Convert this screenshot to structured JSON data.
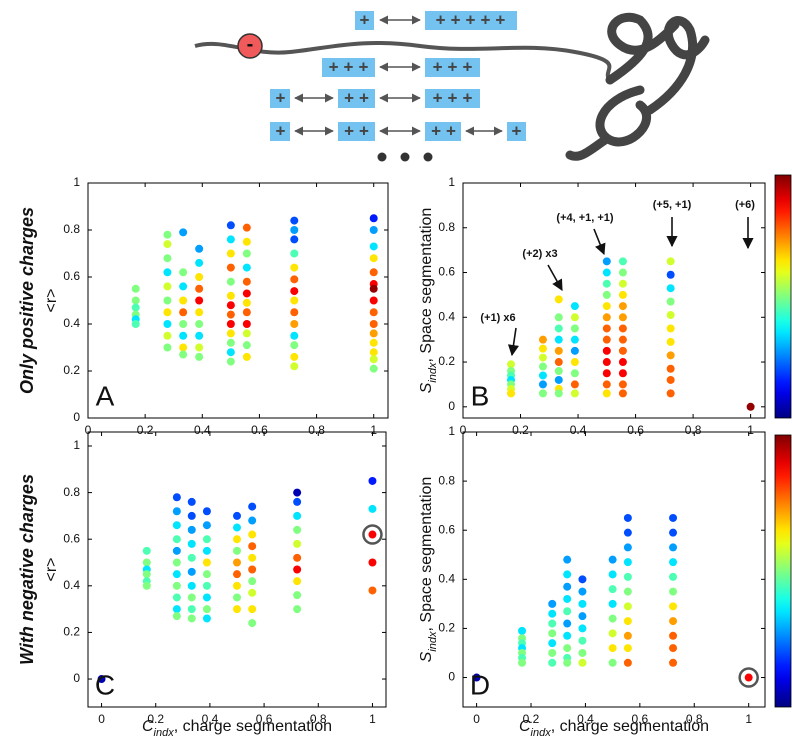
{
  "diagram": {
    "minus": "-",
    "rows": [
      [
        "+",
        "+++++"
      ],
      [
        "+++",
        "+++"
      ],
      [
        "+",
        "++",
        "+++"
      ],
      [
        "+",
        "++",
        "++",
        "+"
      ]
    ]
  },
  "chart_data": [
    {
      "type": "scatter",
      "panel_label": "A",
      "row_label": "Only positive charges",
      "ylabel": "<r>",
      "xlim": [
        0,
        1.05
      ],
      "ylim": [
        0,
        1
      ],
      "xticks": [
        0,
        0.2,
        0.4,
        0.6,
        0.8,
        1
      ],
      "yticks": [
        0,
        0.2,
        0.4,
        0.6,
        0.8,
        1
      ],
      "colormap": "jet",
      "clim": [
        0,
        1
      ],
      "series": [
        {
          "x": 0.167,
          "values": [
            0.55,
            0.5,
            0.47,
            0.44,
            0.42,
            0.4
          ],
          "colors": [
            0.5,
            0.5,
            0.45,
            0.5,
            0.35,
            0.45
          ]
        },
        {
          "x": 0.278,
          "values": [
            0.78,
            0.74,
            0.68,
            0.62,
            0.56,
            0.5,
            0.45,
            0.4,
            0.35,
            0.3
          ],
          "colors": [
            0.5,
            0.58,
            0.5,
            0.35,
            0.58,
            0.5,
            0.65,
            0.35,
            0.58,
            0.5
          ]
        },
        {
          "x": 0.333,
          "values": [
            0.79,
            0.62,
            0.56,
            0.5,
            0.45,
            0.4,
            0.35,
            0.3,
            0.27
          ],
          "colors": [
            0.28,
            0.5,
            0.35,
            0.65,
            0.78,
            0.5,
            0.35,
            0.65,
            0.5
          ]
        },
        {
          "x": 0.389,
          "values": [
            0.72,
            0.66,
            0.6,
            0.55,
            0.5,
            0.45,
            0.4,
            0.35,
            0.3,
            0.26
          ],
          "colors": [
            0.28,
            0.35,
            0.65,
            0.78,
            0.88,
            0.65,
            0.5,
            0.35,
            0.58,
            0.5
          ]
        },
        {
          "x": 0.5,
          "values": [
            0.82,
            0.76,
            0.7,
            0.64,
            0.58,
            0.52,
            0.48,
            0.44,
            0.4,
            0.36,
            0.32,
            0.28,
            0.24
          ],
          "colors": [
            0.2,
            0.35,
            0.65,
            0.78,
            0.5,
            0.65,
            0.88,
            0.78,
            0.88,
            0.65,
            0.5,
            0.35,
            0.5
          ]
        },
        {
          "x": 0.556,
          "values": [
            0.81,
            0.75,
            0.7,
            0.64,
            0.58,
            0.53,
            0.49,
            0.45,
            0.4,
            0.36,
            0.31,
            0.26
          ],
          "colors": [
            0.78,
            0.65,
            0.5,
            0.35,
            0.78,
            0.88,
            0.65,
            0.78,
            0.88,
            0.58,
            0.5,
            0.65
          ]
        },
        {
          "x": 0.722,
          "values": [
            0.84,
            0.8,
            0.76,
            0.7,
            0.64,
            0.59,
            0.54,
            0.5,
            0.45,
            0.4,
            0.35,
            0.31,
            0.26,
            0.22
          ],
          "colors": [
            0.2,
            0.28,
            0.2,
            0.45,
            0.65,
            0.78,
            0.88,
            0.65,
            0.78,
            0.72,
            0.35,
            0.5,
            0.65,
            0.58
          ]
        },
        {
          "x": 1,
          "values": [
            0.85,
            0.8,
            0.73,
            0.68,
            0.62,
            0.57,
            0.55,
            0.5,
            0.45,
            0.4,
            0.36,
            0.32,
            0.28,
            0.25,
            0.21
          ],
          "colors": [
            0.15,
            0.28,
            0.35,
            0.65,
            0.78,
            0.88,
            0.98,
            0.88,
            0.78,
            0.78,
            0.72,
            0.65,
            0.65,
            0.58,
            0.5
          ]
        }
      ]
    },
    {
      "type": "scatter",
      "panel_label": "B",
      "ylabel": {
        "symbol": "S",
        "subscript": "indx",
        "text": ", Space segmentation"
      },
      "xlim": [
        0,
        1.05
      ],
      "ylim": [
        -0.05,
        1
      ],
      "xticks": [
        0,
        0.2,
        0.4,
        0.6,
        0.8,
        1
      ],
      "yticks": [
        0,
        0.2,
        0.4,
        0.6,
        0.8,
        1
      ],
      "colormap": "jet",
      "clim": [
        0,
        1
      ],
      "colorbar": true,
      "annotations": [
        "(+1) x6",
        "(+2) x3",
        "(+4, +1, +1)",
        "(+5, +1)",
        "(+6)"
      ],
      "series": [
        {
          "x": 0.167,
          "values": [
            0.19,
            0.16,
            0.14,
            0.12,
            0.1,
            0.08,
            0.06
          ],
          "colors": [
            0.58,
            0.5,
            0.45,
            0.35,
            0.5,
            0.58,
            0.65
          ]
        },
        {
          "x": 0.278,
          "values": [
            0.3,
            0.26,
            0.22,
            0.18,
            0.14,
            0.1,
            0.06
          ],
          "colors": [
            0.72,
            0.65,
            0.58,
            0.5,
            0.35,
            0.28,
            0.5
          ]
        },
        {
          "x": 0.333,
          "values": [
            0.48,
            0.4,
            0.35,
            0.3,
            0.25,
            0.2,
            0.16,
            0.12,
            0.08,
            0.06
          ],
          "colors": [
            0.65,
            0.5,
            0.45,
            0.35,
            0.72,
            0.78,
            0.5,
            0.28,
            0.65,
            0.5
          ]
        },
        {
          "x": 0.389,
          "values": [
            0.45,
            0.4,
            0.35,
            0.3,
            0.25,
            0.2,
            0.15,
            0.1,
            0.06
          ],
          "colors": [
            0.35,
            0.58,
            0.5,
            0.35,
            0.28,
            0.65,
            0.5,
            0.78,
            0.58
          ]
        },
        {
          "x": 0.5,
          "values": [
            0.65,
            0.6,
            0.55,
            0.5,
            0.45,
            0.4,
            0.35,
            0.3,
            0.25,
            0.2,
            0.15,
            0.1,
            0.06
          ],
          "colors": [
            0.28,
            0.35,
            0.45,
            0.5,
            0.65,
            0.72,
            0.78,
            0.78,
            0.88,
            0.88,
            0.88,
            0.78,
            0.65
          ]
        },
        {
          "x": 0.556,
          "values": [
            0.65,
            0.6,
            0.55,
            0.5,
            0.45,
            0.4,
            0.35,
            0.3,
            0.25,
            0.2,
            0.15,
            0.1,
            0.06
          ],
          "colors": [
            0.45,
            0.5,
            0.58,
            0.65,
            0.72,
            0.72,
            0.78,
            0.78,
            0.78,
            0.88,
            0.88,
            0.78,
            0.78
          ]
        },
        {
          "x": 0.722,
          "values": [
            0.65,
            0.59,
            0.53,
            0.47,
            0.41,
            0.35,
            0.29,
            0.23,
            0.17,
            0.12,
            0.06
          ],
          "colors": [
            0.58,
            0.2,
            0.35,
            0.5,
            0.58,
            0.65,
            0.65,
            0.72,
            0.78,
            0.78,
            0.78
          ]
        },
        {
          "x": 1,
          "values": [
            0
          ],
          "colors": [
            0.98
          ]
        }
      ]
    },
    {
      "type": "scatter",
      "panel_label": "C",
      "row_label": "With negative charges",
      "ylabel": "<r>",
      "xlabel": {
        "symbol": "C",
        "subscript": "indx",
        "text": ", charge segmentation"
      },
      "xlim": [
        -0.05,
        1.05
      ],
      "ylim": [
        -0.12,
        1.06
      ],
      "xticks": [
        0,
        0.2,
        0.4,
        0.6,
        0.8,
        1
      ],
      "yticks": [
        0,
        0.2,
        0.4,
        0.6,
        0.8,
        1
      ],
      "colormap": "jet",
      "clim": [
        0,
        1
      ],
      "highlight": {
        "series": 8,
        "index": 2
      },
      "series": [
        {
          "x": 0,
          "values": [
            0
          ],
          "colors": [
            0.05
          ]
        },
        {
          "x": 0.167,
          "values": [
            0.55,
            0.5,
            0.47,
            0.45,
            0.42,
            0.4
          ],
          "colors": [
            0.45,
            0.5,
            0.35,
            0.5,
            0.45,
            0.5
          ]
        },
        {
          "x": 0.278,
          "values": [
            0.78,
            0.72,
            0.66,
            0.6,
            0.55,
            0.5,
            0.45,
            0.4,
            0.35,
            0.3,
            0.27
          ],
          "colors": [
            0.2,
            0.28,
            0.35,
            0.45,
            0.28,
            0.5,
            0.35,
            0.5,
            0.45,
            0.35,
            0.5
          ]
        },
        {
          "x": 0.333,
          "values": [
            0.76,
            0.7,
            0.64,
            0.58,
            0.52,
            0.46,
            0.4,
            0.35,
            0.3,
            0.26
          ],
          "colors": [
            0.2,
            0.2,
            0.28,
            0.35,
            0.45,
            0.28,
            0.35,
            0.5,
            0.45,
            0.5
          ]
        },
        {
          "x": 0.389,
          "values": [
            0.72,
            0.66,
            0.6,
            0.55,
            0.5,
            0.45,
            0.4,
            0.35,
            0.3,
            0.26
          ],
          "colors": [
            0.2,
            0.28,
            0.45,
            0.35,
            0.65,
            0.5,
            0.45,
            0.35,
            0.5,
            0.35
          ]
        },
        {
          "x": 0.5,
          "values": [
            0.7,
            0.65,
            0.6,
            0.55,
            0.5,
            0.45,
            0.4,
            0.35,
            0.3
          ],
          "colors": [
            0.2,
            0.35,
            0.65,
            0.5,
            0.72,
            0.78,
            0.65,
            0.5,
            0.65
          ]
        },
        {
          "x": 0.556,
          "values": [
            0.74,
            0.68,
            0.62,
            0.57,
            0.52,
            0.47,
            0.42,
            0.37,
            0.3,
            0.24
          ],
          "colors": [
            0.2,
            0.28,
            0.65,
            0.78,
            0.65,
            0.78,
            0.5,
            0.58,
            0.65,
            0.5
          ]
        },
        {
          "x": 0.722,
          "values": [
            0.8,
            0.76,
            0.7,
            0.64,
            0.58,
            0.52,
            0.47,
            0.42,
            0.36,
            0.3
          ],
          "colors": [
            0.05,
            0.2,
            0.35,
            0.5,
            0.58,
            0.78,
            0.88,
            0.65,
            0.5,
            0.5
          ]
        },
        {
          "x": 1,
          "values": [
            0.85,
            0.73,
            0.62,
            0.5,
            0.38
          ],
          "colors": [
            0.15,
            0.35,
            0.88,
            0.88,
            0.78
          ]
        }
      ]
    },
    {
      "type": "scatter",
      "panel_label": "D",
      "ylabel": {
        "symbol": "S",
        "subscript": "indx",
        "text": ", Space segmentation"
      },
      "xlabel": {
        "symbol": "C",
        "subscript": "indx",
        "text": ", charge segmentation"
      },
      "xlim": [
        -0.05,
        1.06
      ],
      "ylim": [
        -0.12,
        1
      ],
      "xticks": [
        0,
        0.2,
        0.4,
        0.6,
        0.8,
        1
      ],
      "yticks": [
        0,
        0.2,
        0.4,
        0.6,
        0.8,
        1
      ],
      "colormap": "jet",
      "clim": [
        0,
        1
      ],
      "colorbar": true,
      "highlight": {
        "series": 8,
        "index": 0
      },
      "series": [
        {
          "x": 0,
          "values": [
            0
          ],
          "colors": [
            0.05
          ]
        },
        {
          "x": 0.167,
          "values": [
            0.19,
            0.16,
            0.14,
            0.12,
            0.1,
            0.08,
            0.06
          ],
          "colors": [
            0.35,
            0.5,
            0.45,
            0.35,
            0.5,
            0.45,
            0.5
          ]
        },
        {
          "x": 0.278,
          "values": [
            0.3,
            0.26,
            0.22,
            0.18,
            0.14,
            0.1,
            0.06
          ],
          "colors": [
            0.28,
            0.35,
            0.45,
            0.5,
            0.35,
            0.5,
            0.45
          ]
        },
        {
          "x": 0.333,
          "values": [
            0.48,
            0.42,
            0.37,
            0.32,
            0.27,
            0.22,
            0.17,
            0.12,
            0.08,
            0.06
          ],
          "colors": [
            0.28,
            0.35,
            0.28,
            0.35,
            0.45,
            0.28,
            0.35,
            0.5,
            0.45,
            0.5
          ]
        },
        {
          "x": 0.389,
          "values": [
            0.4,
            0.35,
            0.3,
            0.25,
            0.2,
            0.15,
            0.1,
            0.06
          ],
          "colors": [
            0.2,
            0.28,
            0.35,
            0.28,
            0.35,
            0.45,
            0.5,
            0.58
          ]
        },
        {
          "x": 0.5,
          "values": [
            0.48,
            0.42,
            0.36,
            0.3,
            0.24,
            0.18,
            0.12,
            0.06
          ],
          "colors": [
            0.28,
            0.35,
            0.45,
            0.35,
            0.5,
            0.58,
            0.65,
            0.5
          ]
        },
        {
          "x": 0.556,
          "values": [
            0.65,
            0.59,
            0.53,
            0.47,
            0.41,
            0.35,
            0.29,
            0.23,
            0.17,
            0.12,
            0.06
          ],
          "colors": [
            0.2,
            0.2,
            0.28,
            0.35,
            0.45,
            0.5,
            0.58,
            0.65,
            0.72,
            0.65,
            0.78
          ]
        },
        {
          "x": 0.722,
          "values": [
            0.65,
            0.59,
            0.53,
            0.47,
            0.41,
            0.35,
            0.29,
            0.23,
            0.17,
            0.12,
            0.06
          ],
          "colors": [
            0.2,
            0.2,
            0.28,
            0.35,
            0.45,
            0.5,
            0.65,
            0.72,
            0.78,
            0.78,
            0.78
          ]
        },
        {
          "x": 1,
          "values": [
            0
          ],
          "colors": [
            0.88
          ]
        }
      ]
    }
  ]
}
